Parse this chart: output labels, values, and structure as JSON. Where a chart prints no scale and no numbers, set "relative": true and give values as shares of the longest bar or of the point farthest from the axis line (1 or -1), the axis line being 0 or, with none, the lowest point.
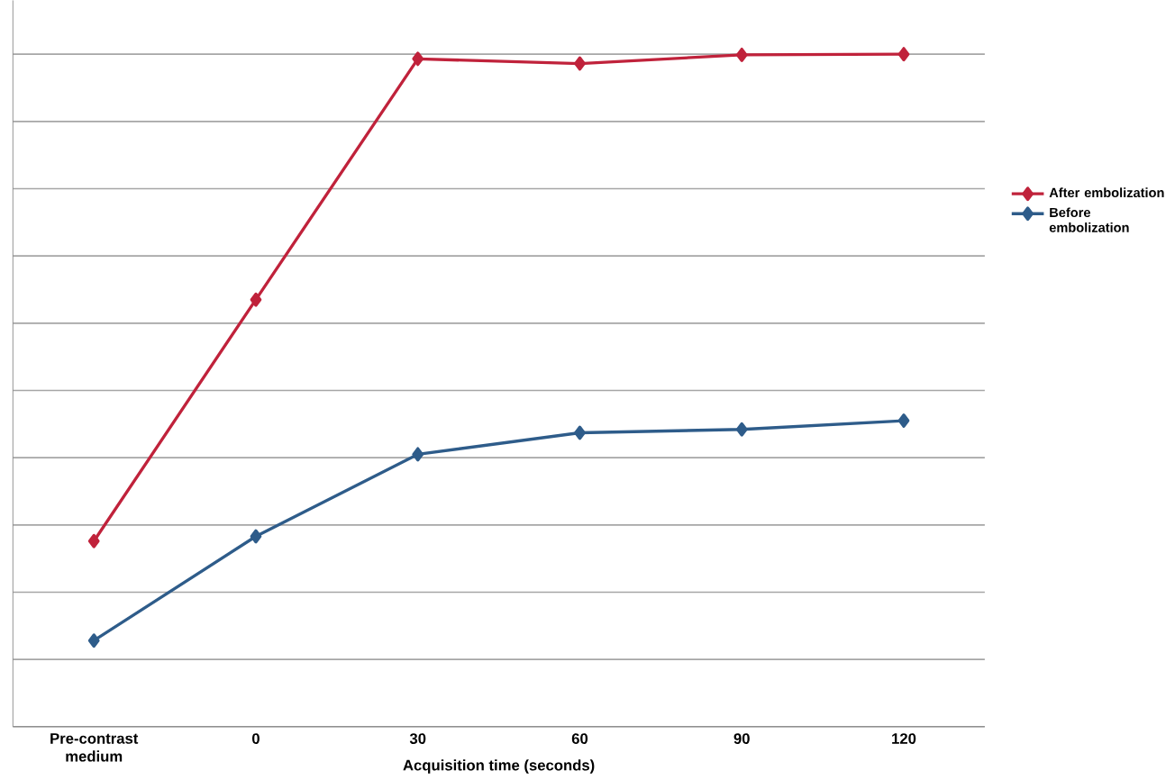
{
  "chart_data": {
    "type": "line",
    "xlabel": "Acquisition time (seconds)",
    "categories": [
      "Pre-contrast medium",
      "0",
      "30",
      "60",
      "90",
      "120"
    ],
    "series": [
      {
        "name": "After embolization",
        "color": "#c0223b",
        "values": [
          0.276,
          0.635,
          0.993,
          0.986,
          0.999,
          1
        ]
      },
      {
        "name": "Before embolization",
        "color": "#2e5c8a",
        "values": [
          0.128,
          0.283,
          0.405,
          0.437,
          0.442,
          0.455
        ]
      }
    ],
    "relative": true,
    "grid": "y",
    "legend": "right",
    "marker": "diamond",
    "line_style": "solid"
  }
}
